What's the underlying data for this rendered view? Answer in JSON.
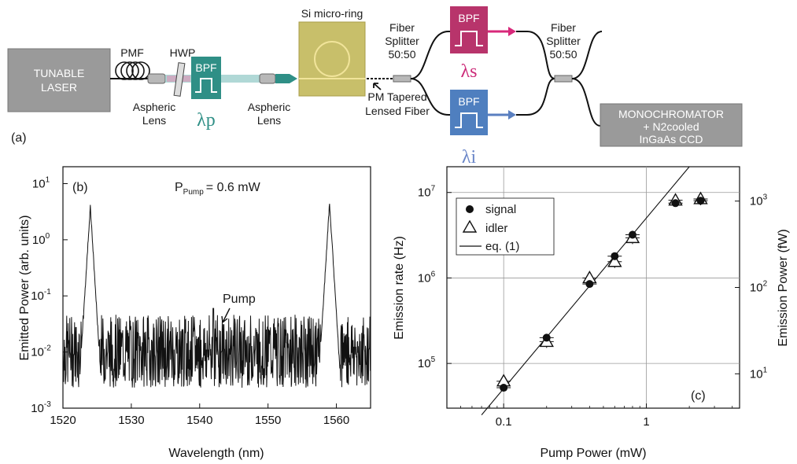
{
  "colors": {
    "laser_box": "#9a9a9a",
    "mono_box": "#9a9a9a",
    "bpf_pump": "#2f8f86",
    "bpf_signal": "#b8346b",
    "bpf_idler": "#4f7fbf",
    "signal_arrow": "#d8287a",
    "idler_arrow": "#5a7fc0",
    "ring_chip": "#c8bf6a",
    "lens": "#b8b8b8",
    "beam": "#8fc8c4",
    "text_signal": "#cc2a78",
    "text_idler": "#6a86c8",
    "text_pump": "#2f8f86"
  },
  "setup": {
    "panel_label": "(a)",
    "laser": [
      "TUNABLE",
      "LASER"
    ],
    "pmf": "PMF",
    "hwp": "HWP",
    "bpf_label": "BPF",
    "lens1": [
      "Aspheric",
      "Lens"
    ],
    "lambda_p": "λp",
    "lens2": [
      "Aspheric",
      "Lens"
    ],
    "ring": "Si micro-ring",
    "tapered_fiber": [
      "PM Tapered",
      "Lensed Fiber"
    ],
    "splitter1": [
      "Fiber",
      "Splitter",
      "50:50"
    ],
    "lambda_s": "λs",
    "lambda_i": "λi",
    "splitter2": [
      "Fiber",
      "Splitter",
      "50:50"
    ],
    "monochromator": [
      "MONOCHROMATOR",
      "+ N2cooled",
      "InGaAs CCD"
    ]
  },
  "chart_data": [
    {
      "type": "line",
      "panel_label": "(b)",
      "annotation": "P",
      "annotation_sub": "Pump",
      "annotation_rest": "= 0.6 mW",
      "pump_label": "Pump",
      "xlabel": "Wavelength (nm)",
      "ylabel": "Emitted Power (arb. units)",
      "xlim": [
        1520,
        1565
      ],
      "ylim": [
        0.001,
        20
      ],
      "yscale": "log",
      "xticks": [
        "1520",
        "1530",
        "1540",
        "1550",
        "1560"
      ],
      "peaks": [
        {
          "x": 1524,
          "y": 4.0
        },
        {
          "x": 1559,
          "y": 4.6
        }
      ],
      "noise_floor": 0.012,
      "pump_marker": {
        "x": 1542,
        "y": 0.06
      }
    },
    {
      "type": "scatter",
      "panel_label": "(c)",
      "xlabel": "Pump Power (mW)",
      "ylabel": "Emission rate (Hz)",
      "ylabel_right": "Emission Power (fW)",
      "xscale": "log",
      "yscale": "log",
      "xlim": [
        0.04,
        4.5
      ],
      "ylim": [
        30000,
        20000000
      ],
      "ylim_right": [
        4,
        2500
      ],
      "xticks": [
        "0.1",
        "1"
      ],
      "grid": true,
      "legend_position": "top-left",
      "series": [
        {
          "name": "signal",
          "marker": "filled-circle",
          "x": [
            0.1,
            0.2,
            0.4,
            0.6,
            0.8,
            1.6,
            2.4
          ],
          "y": [
            52000,
            200000,
            850000,
            1800000,
            3200000,
            7500000,
            8000000
          ]
        },
        {
          "name": "idler",
          "marker": "open-triangle",
          "x": [
            0.1,
            0.2,
            0.4,
            0.6,
            0.8,
            1.6,
            2.4
          ],
          "y": [
            62000,
            180000,
            1000000,
            1550000,
            2950000,
            8100000,
            8400000
          ]
        },
        {
          "name": "eq. (1)",
          "marker": "line",
          "x": [
            0.07,
            2.0
          ],
          "y": [
            25000,
            20000000
          ]
        }
      ]
    }
  ]
}
